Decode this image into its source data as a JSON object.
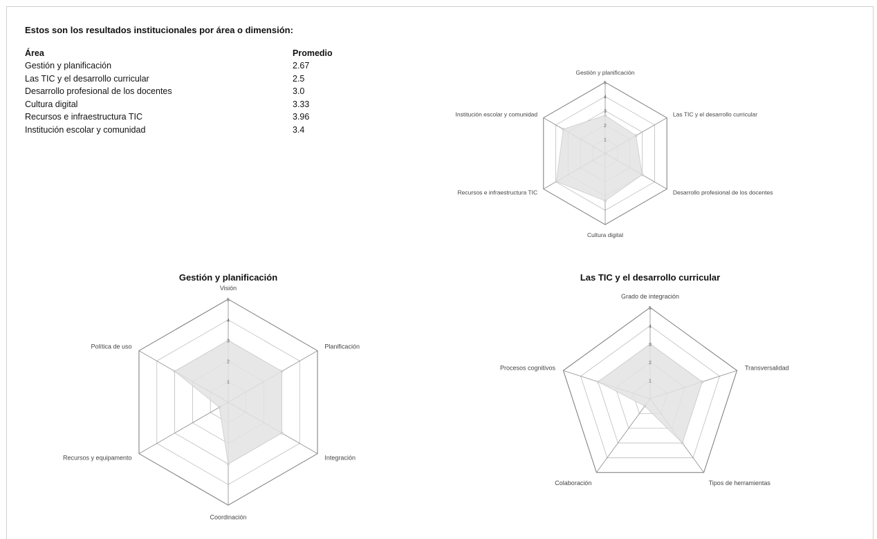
{
  "heading": "Estos son los resultados institucionales por área o dimensión:",
  "table": {
    "headers": [
      "Área",
      "Promedio"
    ],
    "rows": [
      [
        "Gestión y planificación",
        "2.67"
      ],
      [
        "Las TIC y el desarrollo curricular",
        "2.5"
      ],
      [
        "Desarrollo profesional de los docentes",
        "3.0"
      ],
      [
        "Cultura digital",
        "3.33"
      ],
      [
        "Recursos e infraestructura TIC",
        "3.96"
      ],
      [
        "Institución escolar y comunidad",
        "3.4"
      ]
    ]
  },
  "chart_data": [
    {
      "type": "radar",
      "title": "",
      "axes": [
        "Gestión y planificación",
        "Las TIC y el desarrollo curricular",
        "Desarrollo profesional de los docentes",
        "Cultura digital",
        "Recursos e infraestructura TIC",
        "Institución escolar y comunidad"
      ],
      "values": [
        2.67,
        2.5,
        3.0,
        3.33,
        3.96,
        3.4
      ],
      "rlim": [
        0,
        5
      ],
      "ticks": [
        1,
        2,
        3,
        4,
        5
      ],
      "fill_color": "#e3e3e3",
      "grid": true
    },
    {
      "type": "radar",
      "title": "Gestión y planificación",
      "axes": [
        "Visión",
        "Planificación",
        "Integración",
        "Coordinación",
        "Recursos y equipamento",
        "Política de uso"
      ],
      "values": [
        3.0,
        3.0,
        3.0,
        3.0,
        0.5,
        3.0
      ],
      "rlim": [
        0,
        5
      ],
      "ticks": [
        1,
        2,
        3,
        4,
        5
      ],
      "fill_color": "#e3e3e3",
      "grid": true
    },
    {
      "type": "radar",
      "title": "Las TIC y el desarrollo curricular",
      "axes": [
        "Grado de integración",
        "Transversalidad",
        "Tipos de herramientas",
        "Colaboración",
        "Procesos cognitivos"
      ],
      "values": [
        3.0,
        3.0,
        3.0,
        0.5,
        3.0
      ],
      "rlim": [
        0,
        5
      ],
      "ticks": [
        1,
        2,
        3,
        4,
        5
      ],
      "fill_color": "#e3e3e3",
      "grid": true
    }
  ]
}
